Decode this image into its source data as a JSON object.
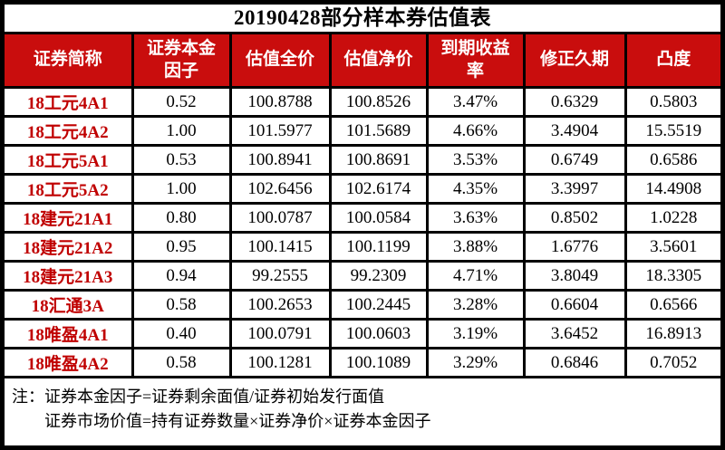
{
  "title": "20190428部分样本券估值表",
  "table": {
    "columns": [
      "证券简称",
      "证券本金\n因子",
      "估值全价",
      "估值净价",
      "到期收益\n率",
      "修正久期",
      "凸度"
    ],
    "rows": [
      [
        "18工元4A1",
        "0.52",
        "100.8788",
        "100.8526",
        "3.47%",
        "0.6329",
        "0.5803"
      ],
      [
        "18工元4A2",
        "1.00",
        "101.5977",
        "101.5689",
        "4.66%",
        "3.4904",
        "15.5519"
      ],
      [
        "18工元5A1",
        "0.53",
        "100.8941",
        "100.8691",
        "3.53%",
        "0.6749",
        "0.6586"
      ],
      [
        "18工元5A2",
        "1.00",
        "102.6456",
        "102.6174",
        "4.35%",
        "3.3997",
        "14.4908"
      ],
      [
        "18建元21A1",
        "0.80",
        "100.0787",
        "100.0584",
        "3.63%",
        "0.8502",
        "1.0228"
      ],
      [
        "18建元21A2",
        "0.95",
        "100.1415",
        "100.1199",
        "3.88%",
        "1.6776",
        "3.5601"
      ],
      [
        "18建元21A3",
        "0.94",
        "99.2555",
        "99.2309",
        "4.71%",
        "3.8049",
        "18.3305"
      ],
      [
        "18汇通3A",
        "0.58",
        "100.2653",
        "100.2445",
        "3.28%",
        "0.6604",
        "0.6566"
      ],
      [
        "18唯盈4A1",
        "0.40",
        "100.0791",
        "100.0603",
        "3.19%",
        "3.6452",
        "16.8913"
      ],
      [
        "18唯盈4A2",
        "0.58",
        "100.1281",
        "100.1089",
        "3.29%",
        "0.6846",
        "0.7052"
      ]
    ]
  },
  "notes": {
    "line1": "注：证券本金因子=证券剩余面值/证券初始发行面值",
    "line2": "证券市场价值=持有证券数量×证券净价×证券本金因子"
  },
  "colors": {
    "header_bg": "#c90d0d",
    "header_text": "#ffffff",
    "row_label_text": "#c00000",
    "border": "#000000",
    "background": "#ffffff"
  }
}
